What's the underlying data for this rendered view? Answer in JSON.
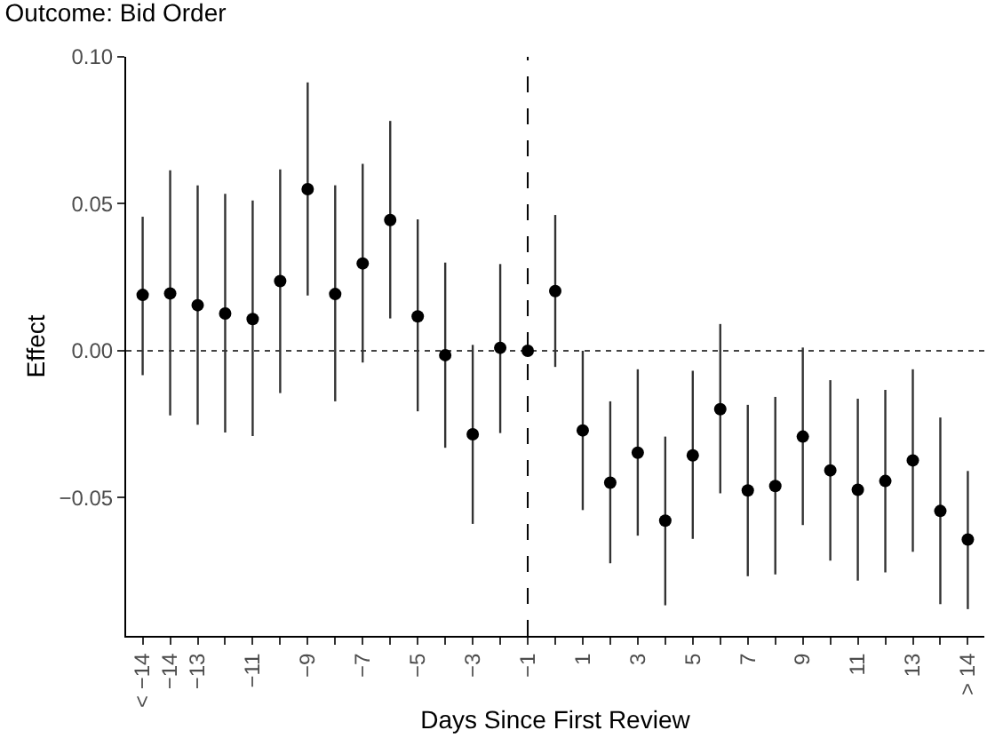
{
  "chart_data": {
    "type": "scatter",
    "title": "Outcome: Bid Order",
    "xlabel": "Days Since First Review",
    "ylabel": "Effect",
    "x": [
      -15,
      -14,
      -13,
      -12,
      -11,
      -10,
      -9,
      -8,
      -7,
      -6,
      -5,
      -4,
      -3,
      -2,
      -1,
      0,
      1,
      2,
      3,
      4,
      5,
      6,
      7,
      8,
      9,
      10,
      11,
      12,
      13,
      14,
      15
    ],
    "series": [
      {
        "color": "#000000",
        "values": [
          0.019,
          0.0195,
          0.0155,
          0.0127,
          0.0108,
          0.0237,
          0.055,
          0.0193,
          0.0297,
          0.0445,
          0.0117,
          -0.0015,
          -0.0284,
          0.001,
          0.0,
          0.0203,
          -0.0271,
          -0.0449,
          -0.0347,
          -0.0578,
          -0.0356,
          -0.0199,
          -0.0475,
          -0.046,
          -0.0292,
          -0.0407,
          -0.0473,
          -0.0443,
          -0.0373,
          -0.0545,
          -0.0642
        ],
        "errors": [
          [
            -0.0083,
            0.0456
          ],
          [
            -0.022,
            0.0614
          ],
          [
            -0.0252,
            0.0563
          ],
          [
            -0.0278,
            0.0534
          ],
          [
            -0.029,
            0.0511
          ],
          [
            -0.0144,
            0.0617
          ],
          [
            0.0188,
            0.0913
          ],
          [
            -0.0172,
            0.0563
          ],
          [
            -0.004,
            0.0636
          ],
          [
            0.011,
            0.0782
          ],
          [
            -0.0206,
            0.0447
          ],
          [
            -0.033,
            0.03
          ],
          [
            -0.0589,
            0.002
          ],
          [
            -0.028,
            0.0295
          ],
          null,
          [
            -0.0055,
            0.0462
          ],
          [
            -0.0542,
            0.0
          ],
          [
            -0.0723,
            -0.0172
          ],
          [
            -0.0629,
            -0.0063
          ],
          [
            -0.0866,
            -0.0292
          ],
          [
            -0.064,
            -0.0068
          ],
          [
            -0.0485,
            0.0091
          ],
          [
            -0.0767,
            -0.0184
          ],
          [
            -0.0761,
            -0.0157
          ],
          [
            -0.0593,
            0.0011
          ],
          [
            -0.0714,
            -0.01
          ],
          [
            -0.0782,
            -0.0163
          ],
          [
            -0.0754,
            -0.0133
          ],
          [
            -0.0684,
            -0.0063
          ],
          [
            -0.0862,
            -0.0227
          ],
          [
            -0.0879,
            -0.0409
          ]
        ]
      }
    ],
    "xlim": [
      -15.6,
      15.6
    ],
    "ylim": [
      -0.097,
      0.1
    ],
    "xticks": [
      {
        "value": -15,
        "label": "< −14"
      },
      {
        "value": -14,
        "label": "−14"
      },
      {
        "value": -13,
        "label": "−13"
      },
      {
        "value": -12,
        "label": null
      },
      {
        "value": -11,
        "label": "−11"
      },
      {
        "value": -10,
        "label": null
      },
      {
        "value": -9,
        "label": "−9"
      },
      {
        "value": -8,
        "label": null
      },
      {
        "value": -7,
        "label": "−7"
      },
      {
        "value": -6,
        "label": null
      },
      {
        "value": -5,
        "label": "−5"
      },
      {
        "value": -4,
        "label": null
      },
      {
        "value": -3,
        "label": "−3"
      },
      {
        "value": -2,
        "label": null
      },
      {
        "value": -1,
        "label": "−1"
      },
      {
        "value": 0,
        "label": null
      },
      {
        "value": 1,
        "label": "1"
      },
      {
        "value": 2,
        "label": null
      },
      {
        "value": 3,
        "label": "3"
      },
      {
        "value": 4,
        "label": null
      },
      {
        "value": 5,
        "label": "5"
      },
      {
        "value": 6,
        "label": null
      },
      {
        "value": 7,
        "label": "7"
      },
      {
        "value": 8,
        "label": null
      },
      {
        "value": 9,
        "label": "9"
      },
      {
        "value": 10,
        "label": null
      },
      {
        "value": 11,
        "label": "11"
      },
      {
        "value": 12,
        "label": null
      },
      {
        "value": 13,
        "label": "13"
      },
      {
        "value": 14,
        "label": null
      },
      {
        "value": 15,
        "label": "> 14"
      }
    ],
    "yticks": [
      {
        "value": -0.05,
        "label": "−0.05"
      },
      {
        "value": 0,
        "label": "0.00"
      },
      {
        "value": 0.05,
        "label": "0.05"
      },
      {
        "value": 0.1,
        "label": "0.10"
      }
    ],
    "ref_lines": [
      {
        "axis": "y",
        "value": 0,
        "line_style": "dotted",
        "color": "#444444"
      },
      {
        "axis": "x",
        "value": -1,
        "line_style": "dashed",
        "color": "#000000"
      }
    ],
    "marker": "circle",
    "grid": false
  }
}
